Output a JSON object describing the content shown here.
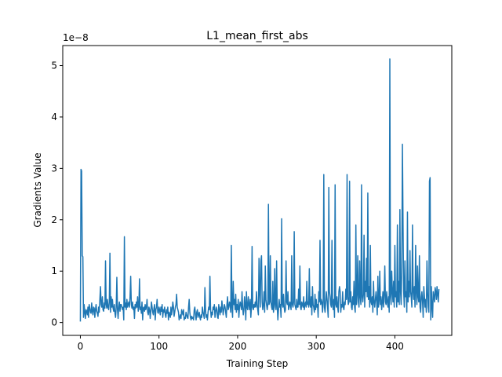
{
  "chart_data": {
    "type": "line",
    "title": "L1_mean_first_abs",
    "xlabel": "Training Step",
    "ylabel": "Gradients Value",
    "offset_text": "1e−8",
    "scale": 1e-08,
    "xlim": [
      -22.4,
      472.4
    ],
    "ylim": [
      -0.25,
      5.39
    ],
    "x_ticks": [
      0,
      100,
      200,
      300,
      400
    ],
    "y_ticks": [
      0,
      1,
      2,
      3,
      4,
      5
    ],
    "grid": false,
    "line_color": "#1f77b4",
    "series": [
      {
        "values": [
          0.02,
          2.98,
          2.95,
          1.3,
          1.28,
          0.1,
          0.35,
          0.2,
          0.08,
          0.25,
          0.22,
          0.15,
          0.3,
          0.1,
          0.35,
          0.28,
          0.2,
          0.18,
          0.38,
          0.22,
          0.15,
          0.3,
          0.28,
          0.1,
          0.25,
          0.35,
          0.22,
          0.18,
          0.12,
          0.3,
          0.2,
          0.45,
          0.7,
          0.35,
          0.3,
          0.5,
          0.25,
          0.22,
          0.38,
          0.28,
          1.2,
          0.35,
          0.28,
          0.45,
          0.3,
          0.25,
          0.4,
          1.35,
          0.2,
          0.5,
          0.3,
          0.45,
          0.28,
          0.22,
          0.35,
          0.18,
          0.1,
          0.3,
          0.88,
          0.25,
          0.08,
          0.3,
          0.4,
          0.22,
          0.35,
          0.35,
          0.3,
          0.25,
          0.3,
          0.05,
          1.67,
          0.3,
          0.38,
          0.25,
          0.45,
          0.3,
          0.35,
          0.4,
          0.3,
          0.5,
          0.9,
          0.35,
          0.28,
          0.4,
          0.25,
          0.3,
          0.08,
          0.35,
          0.28,
          0.4,
          0.3,
          0.5,
          0.22,
          0.3,
          0.85,
          0.25,
          0.3,
          0.18,
          0.4,
          0.05,
          0.28,
          0.3,
          0.22,
          0.35,
          0.25,
          0.3,
          0.45,
          0.2,
          0.15,
          0.3,
          0.25,
          0.08,
          0.22,
          0.4,
          0.3,
          0.2,
          0.15,
          0.28,
          0.35,
          0.05,
          0.25,
          0.3,
          0.45,
          0.2,
          0.18,
          0.3,
          0.25,
          0.15,
          0.3,
          0.22,
          0.35,
          0.1,
          0.25,
          0.2,
          0.3,
          0.15,
          0.1,
          0.25,
          0.18,
          0.3,
          0.05,
          0.2,
          0.15,
          0.1,
          0.3,
          0.15,
          0.25,
          0.4,
          0.3,
          0.12,
          0.2,
          0.3,
          0.35,
          0.55,
          0.3,
          0.25,
          0.2,
          0.05,
          0.1,
          0.15,
          0.08,
          0.25,
          0.2,
          0.15,
          0.25,
          0.05,
          0.1,
          0.08,
          0.2,
          0.15,
          0.1,
          0.08,
          0.3,
          0.45,
          0.2,
          0.1,
          0.05,
          0.12,
          0.08,
          0.1,
          0.05,
          0.25,
          0.3,
          0.15,
          0.05,
          0.2,
          0.25,
          0.1,
          0.15,
          0.2,
          0.1,
          0.05,
          0.15,
          0.1,
          0.3,
          0.2,
          0.15,
          0.08,
          0.68,
          0.25,
          0.1,
          0.15,
          0.05,
          0.2,
          0.3,
          0.25,
          0.9,
          0.25,
          0.1,
          0.2,
          0.15,
          0.3,
          0.25,
          0.35,
          0.1,
          0.2,
          0.3,
          0.25,
          0.1,
          0.08,
          0.35,
          0.25,
          0.15,
          0.3,
          0.2,
          0.42,
          0.3,
          0.15,
          0.25,
          0.35,
          0.3,
          0.2,
          0.1,
          0.35,
          0.5,
          0.25,
          0.3,
          0.4,
          0.35,
          0.2,
          1.5,
          0.3,
          0.1,
          0.8,
          0.35,
          0.45,
          0.25,
          0.55,
          0.2,
          0.35,
          0.25,
          0.45,
          0.1,
          0.3,
          0.4,
          0.35,
          0.25,
          0.6,
          0.3,
          0.15,
          0.25,
          0.5,
          0.35,
          0.05,
          0.6,
          0.3,
          0.25,
          0.5,
          0.35,
          0.25,
          0.45,
          0.1,
          0.3,
          1.48,
          0.3,
          0.25,
          0.35,
          0.3,
          0.4,
          0.3,
          0.6,
          0.35,
          0.25,
          0.15,
          1.25,
          0.6,
          0.3,
          1.2,
          1.3,
          0.4,
          0.25,
          0.35,
          0.6,
          0.2,
          1.1,
          0.45,
          0.35,
          0.25,
          0.35,
          2.3,
          0.35,
          0.4,
          1.3,
          0.4,
          0.3,
          0.25,
          0.8,
          0.2,
          0.3,
          1.05,
          0.35,
          0.25,
          1.2,
          0.3,
          0.05,
          0.25,
          0.45,
          0.3,
          0.35,
          0.1,
          2.02,
          0.35,
          0.3,
          0.55,
          0.3,
          0.2,
          0.25,
          1.2,
          0.4,
          0.35,
          0.6,
          0.25,
          0.3,
          0.4,
          0.35,
          0.25,
          1.3,
          0.35,
          0.3,
          0.4,
          1.77,
          0.35,
          0.3,
          0.25,
          0.45,
          0.3,
          0.3,
          0.65,
          0.35,
          1.1,
          0.3,
          0.25,
          0.4,
          0.35,
          0.3,
          0.5,
          0.25,
          0.35,
          0.4,
          0.3,
          0.8,
          0.35,
          0.4,
          0.3,
          1.05,
          0.35,
          0.3,
          0.5,
          0.15,
          0.7,
          0.35,
          0.3,
          0.2,
          0.55,
          0.25,
          0.45,
          0.3,
          0.35,
          0.1,
          0.6,
          0.4,
          1.6,
          0.35,
          0.45,
          0.4,
          0.2,
          0.4,
          2.88,
          0.3,
          0.2,
          0.4,
          0.6,
          0.45,
          0.3,
          0.1,
          2.63,
          0.6,
          0.5,
          0.35,
          0.3,
          1.6,
          0.35,
          0.25,
          0.45,
          0.1,
          2.68,
          0.35,
          0.3,
          0.5,
          0.3,
          0.2,
          0.6,
          0.7,
          0.6,
          0.2,
          0.35,
          0.3,
          0.6,
          0.3,
          0.25,
          0.4,
          0.35,
          0.65,
          0.45,
          2.88,
          0.5,
          0.35,
          0.4,
          2.75,
          0.4,
          0.6,
          0.3,
          0.25,
          0.5,
          0.35,
          0.8,
          0.3,
          0.2,
          1.9,
          0.35,
          0.55,
          1.3,
          0.4,
          0.3,
          1.2,
          0.5,
          0.35,
          2.68,
          0.5,
          0.4,
          0.55,
          1.7,
          0.3,
          0.8,
          0.6,
          1.25,
          0.5,
          2.52,
          0.45,
          0.7,
          0.3,
          1.5,
          0.4,
          0.35,
          0.5,
          0.2,
          0.8,
          0.4,
          0.3,
          0.45,
          0.6,
          0.4,
          0.15,
          0.9,
          0.3,
          0.45,
          1.0,
          0.35,
          0.5,
          0.25,
          0.4,
          0.6,
          0.3,
          0.55,
          1.1,
          0.4,
          0.35,
          0.6,
          0.4,
          0.3,
          0.5,
          0.2,
          5.13,
          0.5,
          0.35,
          1.0,
          0.6,
          0.4,
          0.8,
          0.3,
          1.5,
          0.5,
          0.6,
          0.3,
          1.9,
          0.4,
          0.8,
          0.35,
          2.2,
          0.6,
          0.35,
          1.1,
          3.47,
          1.9,
          0.6,
          0.3,
          1.2,
          0.5,
          0.6,
          0.2,
          2.15,
          0.4,
          0.8,
          0.5,
          1.4,
          0.6,
          0.5,
          0.3,
          1.9,
          0.6,
          0.45,
          0.7,
          0.3,
          1.5,
          0.6,
          0.35,
          1.1,
          0.5,
          0.4,
          1.3,
          0.3,
          0.2,
          0.5,
          0.6,
          0.4,
          0.1,
          0.7,
          0.5,
          0.3,
          0.45,
          0.2,
          1.2,
          0.6,
          0.3,
          0.2,
          2.75,
          2.82,
          0.05,
          0.7,
          0.3,
          0.1,
          0.6,
          0.5,
          0.4,
          0.68,
          0.6,
          0.45,
          0.7,
          0.55,
          0.4,
          0.65
        ],
        "step": 0.8
      }
    ]
  }
}
